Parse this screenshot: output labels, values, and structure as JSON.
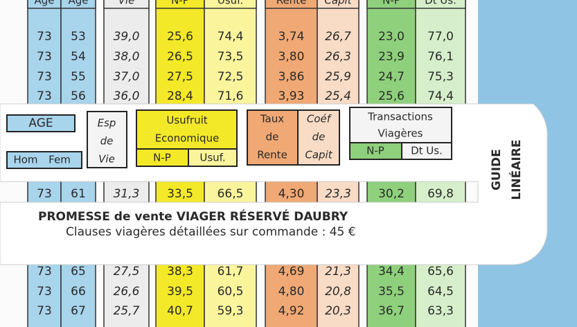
{
  "table": {
    "header": [
      "Age",
      "Age",
      "Vie",
      "N-P",
      "Usuf.",
      "Rente",
      "Capit",
      "N-P",
      "Dt Us."
    ],
    "rows": [
      [
        "73",
        "53",
        "39,0",
        "25,6",
        "74,4",
        "3,74",
        "26,7",
        "23,0",
        "77,0"
      ],
      [
        "73",
        "54",
        "38,0",
        "26,5",
        "73,5",
        "3,80",
        "26,3",
        "23,9",
        "76,1"
      ],
      [
        "73",
        "55",
        "37,0",
        "27,5",
        "72,5",
        "3,86",
        "25,9",
        "24,7",
        "75,3"
      ],
      [
        "73",
        "56",
        "36,0",
        "28,4",
        "71,6",
        "3,93",
        "25,4",
        "25,6",
        "74,4"
      ],
      [
        "73",
        "61",
        "31,3",
        "33,5",
        "66,5",
        "4,30",
        "23,3",
        "30,2",
        "69,8"
      ],
      [
        "73",
        "65",
        "27,5",
        "38,3",
        "61,7",
        "4,69",
        "21,3",
        "34,4",
        "65,6"
      ],
      [
        "73",
        "66",
        "26,6",
        "39,5",
        "60,5",
        "4,80",
        "20,8",
        "35,5",
        "64,5"
      ],
      [
        "73",
        "67",
        "25,7",
        "40,7",
        "59,3",
        "4,92",
        "20,3",
        "36,7",
        "63,3"
      ]
    ]
  },
  "slider": {
    "age": "AGE",
    "hom": "Hom",
    "fem": "Fem",
    "esp": [
      "Esp",
      "de",
      "Vie"
    ],
    "usufruit": [
      "Usufruit",
      "Economique"
    ],
    "usufruit_cols": [
      "N-P",
      "Usuf."
    ],
    "taux": [
      "Taux",
      "de",
      "Rente"
    ],
    "coef": [
      "Coéf",
      "de",
      "Capit"
    ],
    "transactions": [
      "Transactions",
      "Viagères"
    ],
    "transactions_cols": [
      "N-P",
      "Dt Us."
    ],
    "promesse": "PROMESSE de vente VIAGER RÉSERVÉ DAUBRY",
    "clauses": "Clauses viagères détaillées sur commande : 45 €",
    "guide": [
      "GUIDE",
      "LINÉAIRE"
    ]
  }
}
